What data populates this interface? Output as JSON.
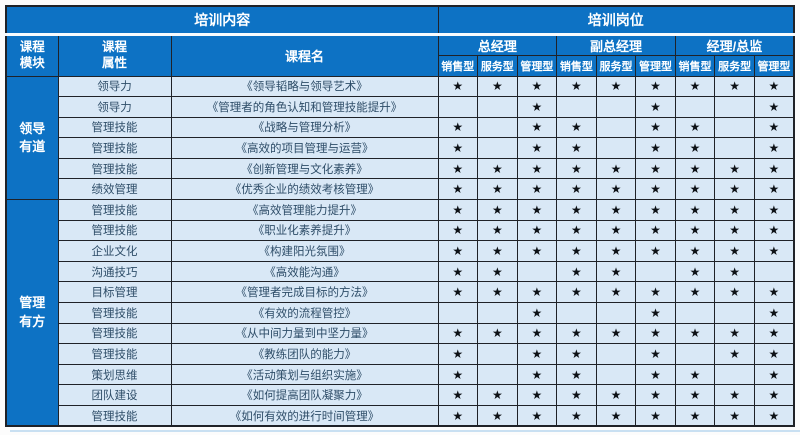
{
  "colors": {
    "header-blue": "#0d72c4",
    "row-bg": "#d9e8f6",
    "border-dark": "#1f2228",
    "text-dark": "#2e4d68",
    "star-color": "#0d1116",
    "sep-white": "#f8fbfd",
    "page-bg": "#fcfcfc",
    "bottom-line": "#c9e0f2"
  },
  "star_glyph": "★",
  "header": {
    "content_title": "培训内容",
    "position_title": "培训岗位",
    "module_label": "课程模块",
    "attribute_label": "课程属性",
    "course_label": "课程名",
    "positions": [
      "总经理",
      "副总经理",
      "经理/总监"
    ],
    "subtypes": [
      "销售型",
      "服务型",
      "管理型"
    ]
  },
  "modules": [
    {
      "name": "领导有道",
      "rowspan": 6
    },
    {
      "name": "管理有方",
      "rowspan": 11
    }
  ],
  "rows": [
    {
      "module": 0,
      "attribute": "领导力",
      "course": "《领导韬略与领导艺术》",
      "stars": [
        1,
        1,
        1,
        1,
        1,
        1,
        1,
        1,
        1
      ]
    },
    {
      "module": 0,
      "attribute": "领导力",
      "course": "《管理者的角色认知和管理技能提升》",
      "stars": [
        0,
        0,
        1,
        0,
        0,
        1,
        0,
        0,
        1
      ]
    },
    {
      "module": 0,
      "attribute": "管理技能",
      "course": "《战略与管理分析》",
      "stars": [
        1,
        0,
        1,
        1,
        0,
        1,
        1,
        0,
        1
      ]
    },
    {
      "module": 0,
      "attribute": "管理技能",
      "course": "《高效的项目管理与运营》",
      "stars": [
        1,
        0,
        1,
        1,
        0,
        1,
        1,
        0,
        1
      ]
    },
    {
      "module": 0,
      "attribute": "管理技能",
      "course": "《创新管理与文化素养》",
      "stars": [
        1,
        1,
        1,
        1,
        1,
        1,
        1,
        1,
        1
      ]
    },
    {
      "module": 0,
      "attribute": "绩效管理",
      "course": "《优秀企业的绩效考核管理》",
      "stars": [
        1,
        1,
        1,
        1,
        1,
        1,
        1,
        1,
        1
      ]
    },
    {
      "module": 1,
      "attribute": "管理技能",
      "course": "《高效管理能力提升》",
      "stars": [
        1,
        1,
        1,
        1,
        1,
        1,
        1,
        1,
        1
      ]
    },
    {
      "module": 1,
      "attribute": "管理技能",
      "course": "《职业化素养提升》",
      "stars": [
        1,
        1,
        1,
        1,
        1,
        1,
        1,
        1,
        1
      ]
    },
    {
      "module": 1,
      "attribute": "企业文化",
      "course": "《构建阳光氛围》",
      "stars": [
        1,
        1,
        1,
        1,
        1,
        1,
        1,
        1,
        1
      ]
    },
    {
      "module": 1,
      "attribute": "沟通技巧",
      "course": "《高效能沟通》",
      "stars": [
        1,
        1,
        0,
        1,
        1,
        0,
        1,
        1,
        0
      ]
    },
    {
      "module": 1,
      "attribute": "目标管理",
      "course": "《管理者完成目标的方法》",
      "stars": [
        1,
        1,
        1,
        1,
        1,
        1,
        1,
        1,
        1
      ]
    },
    {
      "module": 1,
      "attribute": "管理技能",
      "course": "《有效的流程管控》",
      "stars": [
        0,
        0,
        1,
        0,
        0,
        1,
        0,
        0,
        1
      ]
    },
    {
      "module": 1,
      "attribute": "管理技能",
      "course": "《从中间力量到中坚力量》",
      "stars": [
        1,
        1,
        1,
        1,
        1,
        1,
        1,
        1,
        1
      ]
    },
    {
      "module": 1,
      "attribute": "管理技能",
      "course": "《教练团队的能力》",
      "stars": [
        1,
        0,
        1,
        1,
        0,
        1,
        0,
        1,
        1
      ]
    },
    {
      "module": 1,
      "attribute": "策划思维",
      "course": "《活动策划与组织实施》",
      "stars": [
        1,
        0,
        1,
        1,
        0,
        1,
        1,
        0,
        1
      ]
    },
    {
      "module": 1,
      "attribute": "团队建设",
      "course": "《如何提高团队凝聚力》",
      "stars": [
        1,
        1,
        1,
        1,
        1,
        1,
        1,
        1,
        1
      ]
    },
    {
      "module": 1,
      "attribute": "管理技能",
      "course": "《如何有效的进行时间管理》",
      "stars": [
        1,
        1,
        1,
        1,
        1,
        1,
        1,
        1,
        1
      ]
    }
  ]
}
